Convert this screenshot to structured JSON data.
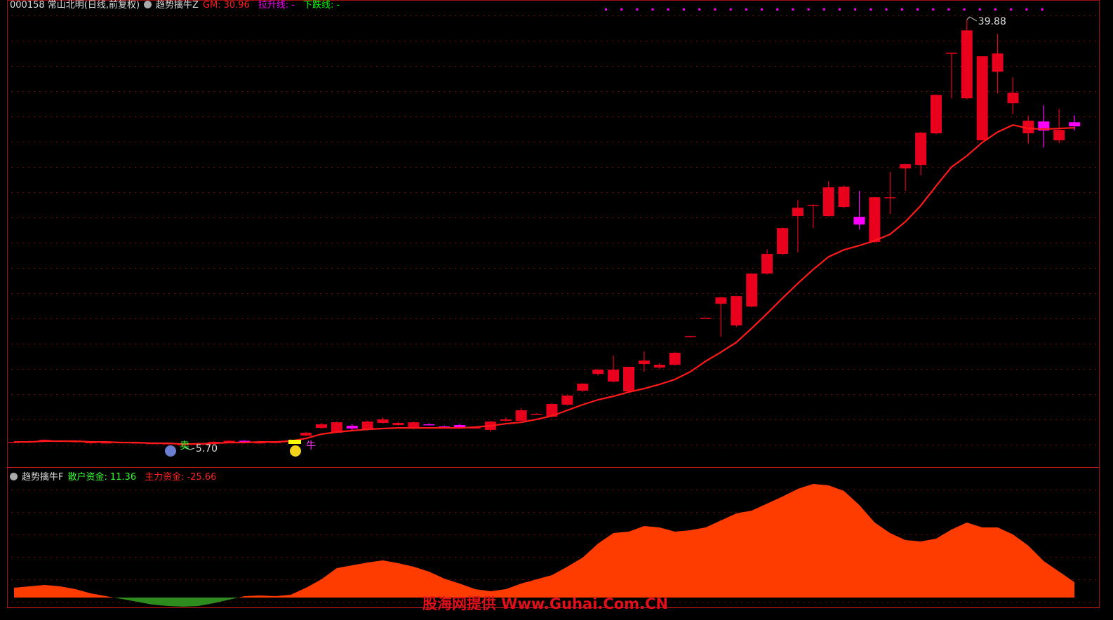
{
  "header": {
    "symbol": "000158 常山北明(日线,前复权)",
    "indicator": "趋势擒牛Z",
    "fields": [
      {
        "name": "GM:",
        "value": 30.96,
        "color": "#ff2020"
      },
      {
        "name": "拉升线:",
        "value": "-",
        "color": "#ff00ff"
      },
      {
        "name": "下跌线:",
        "value": "-",
        "color": "#00ff00"
      }
    ]
  },
  "watermark": "股海网提供 Www.Guhai.Com.CN",
  "chart_data": [
    {
      "type": "candlestick",
      "ylim": [
        4.13,
        40.44
      ],
      "up_color": "#e8001c",
      "down_color": "#ff00ff",
      "high_label": "39.88",
      "low_label": "5.70",
      "signals": [
        {
          "text": "卖",
          "color": "#33ff33"
        },
        {
          "text": "牛",
          "color": "#ff33ff"
        }
      ],
      "open": [
        6.05,
        6.08,
        6.14,
        6.1,
        6.08,
        5.98,
        6.0,
        6.02,
        6.0,
        5.96,
        5.94,
        5.85,
        5.92,
        6.02,
        6.05,
        6.18,
        6.0,
        6.02,
        6.1,
        6.6,
        7.21,
        6.82,
        7.38,
        7.05,
        7.61,
        7.44,
        7.16,
        7.5,
        7.33,
        7.44,
        7.21,
        7.05,
        7.78,
        7.78,
        8.3,
        8.11,
        9.07,
        10.19,
        11.53,
        10.92,
        10.13,
        12.32,
        12.04,
        12.26,
        14.5,
        15.98,
        17.14,
        15.41,
        16.92,
        19.56,
        21.13,
        24.16,
        25.0,
        24.16,
        24.89,
        24.1,
        22.08,
        25.6,
        27.97,
        28.25,
        30.78,
        37.2,
        33.58,
        30.22,
        35.71,
        33.19,
        30.78,
        31.73,
        30.22,
        31.67
      ],
      "high": [
        6.12,
        6.18,
        6.3,
        6.22,
        6.2,
        6.12,
        6.1,
        6.12,
        6.1,
        6.06,
        6.04,
        5.98,
        6.05,
        6.14,
        6.22,
        6.22,
        6.1,
        6.12,
        6.3,
        6.9,
        7.6,
        7.72,
        7.5,
        7.8,
        8.05,
        7.7,
        7.72,
        7.58,
        7.4,
        7.55,
        7.3,
        7.78,
        8.05,
        8.8,
        8.4,
        9.2,
        9.85,
        10.8,
        11.95,
        12.99,
        12.1,
        13.33,
        12.4,
        13.3,
        14.6,
        16.05,
        17.7,
        17.8,
        19.6,
        21.5,
        23.25,
        25.45,
        25.1,
        26.96,
        26.6,
        26.18,
        25.7,
        27.69,
        28.35,
        30.9,
        33.9,
        37.25,
        39.88,
        36.95,
        38.74,
        35.26,
        32.18,
        33.02,
        32.74,
        32.2
      ],
      "low": [
        6.0,
        6.04,
        6.1,
        6.06,
        6.02,
        5.94,
        5.96,
        5.98,
        5.96,
        5.92,
        5.9,
        5.7,
        5.88,
        5.98,
        6.02,
        6.06,
        5.96,
        5.98,
        6.05,
        6.55,
        7.15,
        6.8,
        6.95,
        7.0,
        7.55,
        7.4,
        7.1,
        7.4,
        7.22,
        7.2,
        7.15,
        6.9,
        7.7,
        7.75,
        8.25,
        8.05,
        9.0,
        10.1,
        11.4,
        10.85,
        10.05,
        11.7,
        11.9,
        12.2,
        14.45,
        15.95,
        14.51,
        15.3,
        16.85,
        19.5,
        21.05,
        21.24,
        23.2,
        24.1,
        24.8,
        23.09,
        22.0,
        24.33,
        26.18,
        27.41,
        30.7,
        33.58,
        33.5,
        30.22,
        33.97,
        32.33,
        29.94,
        29.65,
        29.99,
        31.0
      ],
      "close": [
        6.09,
        6.14,
        6.26,
        6.18,
        6.15,
        6.09,
        6.05,
        6.07,
        6.04,
        6.0,
        5.98,
        5.9,
        6.0,
        6.1,
        6.18,
        6.12,
        6.05,
        6.08,
        6.22,
        6.82,
        7.5,
        7.66,
        7.16,
        7.72,
        7.89,
        7.61,
        7.66,
        7.44,
        7.27,
        7.27,
        7.24,
        7.72,
        7.89,
        8.62,
        8.34,
        9.12,
        9.8,
        10.75,
        11.87,
        11.87,
        12.1,
        12.6,
        12.26,
        13.22,
        14.56,
        16.02,
        17.65,
        17.76,
        19.56,
        21.13,
        23.2,
        24.83,
        25.05,
        26.46,
        26.51,
        23.48,
        25.67,
        25.67,
        28.31,
        30.83,
        33.86,
        37.23,
        39.02,
        36.95,
        37.17,
        34.03,
        31.79,
        31.0,
        31.06,
        31.34
      ],
      "line": {
        "color": "#ff1a1a",
        "values": [
          6.09,
          6.09,
          6.15,
          6.15,
          6.15,
          6.09,
          6.09,
          6.04,
          6.04,
          5.98,
          5.98,
          5.92,
          5.92,
          5.98,
          6.04,
          6.04,
          6.09,
          6.09,
          6.15,
          6.37,
          6.71,
          6.88,
          6.99,
          7.1,
          7.16,
          7.21,
          7.21,
          7.21,
          7.21,
          7.21,
          7.27,
          7.38,
          7.55,
          7.66,
          7.89,
          8.17,
          8.62,
          9.07,
          9.46,
          9.74,
          10.08,
          10.36,
          10.69,
          11.09,
          11.7,
          12.54,
          13.27,
          14.06,
          15.18,
          16.36,
          17.59,
          18.77,
          19.89,
          20.9,
          21.46,
          21.8,
          22.19,
          22.7,
          23.71,
          25.0,
          26.57,
          28.08,
          28.98,
          30.05,
          30.89,
          31.45,
          31.17,
          31.12,
          31.17,
          31.23
        ]
      }
    },
    {
      "type": "area",
      "title": "趋势擒牛F",
      "ylim": [
        -6.5,
        92
      ],
      "color": "#ff3c00",
      "negative_color": "#2e8b1e",
      "legend": [
        {
          "name": "散户资金:",
          "value": 11.36,
          "color": "#33ff33"
        },
        {
          "name": "主力资金:",
          "value": -25.66,
          "color": "#ff2020"
        }
      ],
      "values": [
        7,
        8,
        9,
        8,
        6,
        3,
        1,
        -1,
        -3,
        -5,
        -6,
        -6.5,
        -6,
        -4,
        -1.5,
        1,
        1.5,
        1,
        2,
        7,
        13,
        21,
        23,
        25,
        26.5,
        24.5,
        22,
        18.5,
        13.5,
        10,
        6,
        4.5,
        6,
        10,
        13,
        16,
        22,
        28.5,
        38.5,
        46,
        47,
        51,
        50,
        47,
        48,
        50,
        55,
        60,
        62,
        67,
        72,
        77.5,
        81,
        80,
        76,
        66,
        53.5,
        46,
        41,
        40,
        42,
        48.5,
        53.5,
        50,
        50,
        45,
        37,
        26,
        18.5,
        11
      ]
    }
  ]
}
